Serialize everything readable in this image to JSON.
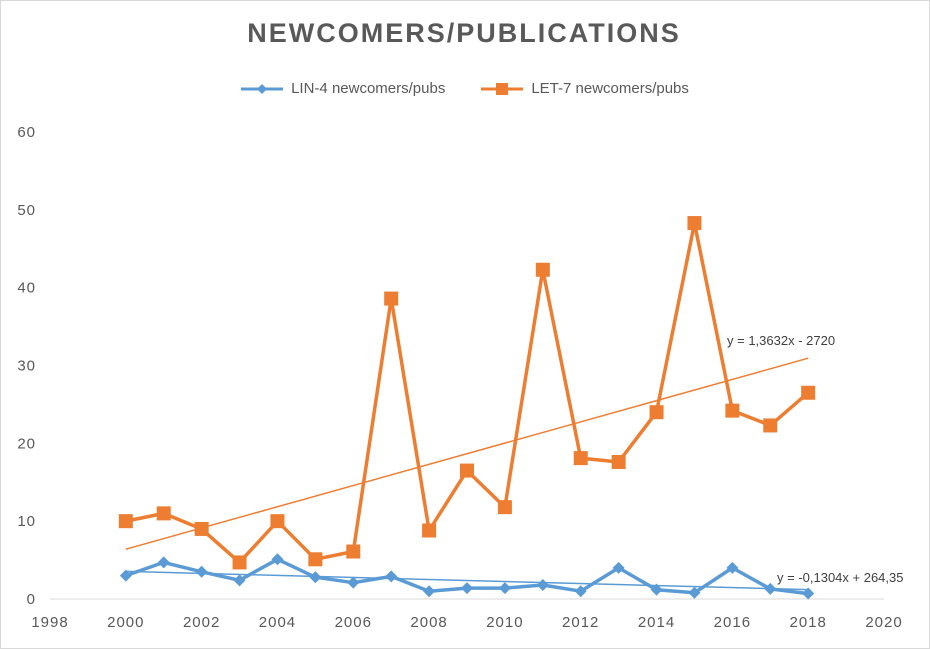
{
  "chart_data": {
    "type": "line",
    "title": "NEWCOMERS/PUBLICATIONS",
    "xlabel": "",
    "ylabel": "",
    "xlim": [
      1998,
      2020
    ],
    "ylim": [
      0,
      60
    ],
    "xticks": [
      1998,
      2000,
      2002,
      2004,
      2006,
      2008,
      2010,
      2012,
      2014,
      2016,
      2018,
      2020
    ],
    "yticks": [
      0,
      10,
      20,
      30,
      40,
      50,
      60
    ],
    "grid": false,
    "legend_position": "top",
    "x": [
      2000,
      2001,
      2002,
      2003,
      2004,
      2005,
      2006,
      2007,
      2008,
      2009,
      2010,
      2011,
      2012,
      2013,
      2014,
      2015,
      2016,
      2017,
      2018
    ],
    "series": [
      {
        "name": "LIN-4 newcomers/pubs",
        "color": "#5b9bd5",
        "marker": "diamond",
        "values": [
          3.0,
          4.7,
          3.5,
          2.4,
          5.1,
          2.8,
          2.1,
          2.9,
          1.0,
          1.4,
          1.4,
          1.8,
          1.0,
          4.0,
          1.2,
          0.8,
          4.0,
          1.3,
          0.7
        ],
        "trendline": {
          "slope": -0.1304,
          "intercept": 264.35,
          "label": "y = -0,1304x + 264,35"
        }
      },
      {
        "name": "LET-7 newcomers/pubs",
        "color": "#ed7d31",
        "marker": "square",
        "values": [
          10.0,
          11.0,
          9.0,
          4.7,
          10.0,
          5.1,
          6.1,
          38.6,
          8.8,
          16.5,
          11.8,
          42.3,
          18.1,
          17.6,
          24.0,
          48.3,
          24.2,
          22.3,
          26.5
        ],
        "trendline": {
          "slope": 1.3632,
          "intercept": -2720,
          "label": "y = 1,3632x - 2720"
        }
      }
    ]
  }
}
